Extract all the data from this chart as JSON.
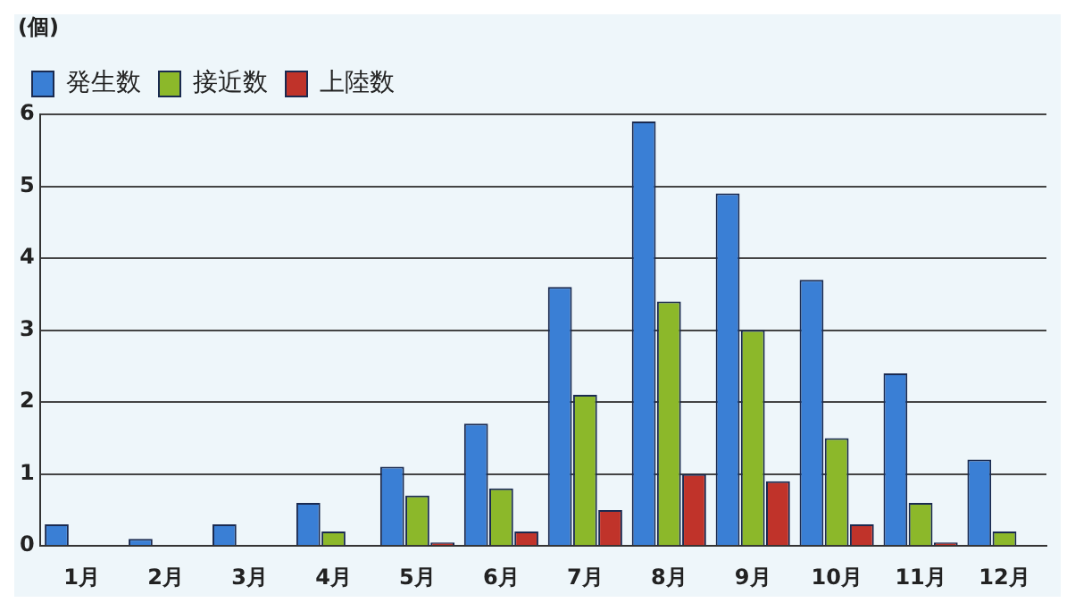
{
  "chart_data": {
    "type": "bar",
    "ylabel": "(個)",
    "categories": [
      "1月",
      "2月",
      "3月",
      "4月",
      "5月",
      "6月",
      "7月",
      "8月",
      "9月",
      "10月",
      "11月",
      "12月"
    ],
    "series": [
      {
        "name": "発生数",
        "color": "#3a7fd5",
        "values": [
          0.3,
          0.1,
          0.3,
          0.6,
          1.1,
          1.7,
          3.6,
          5.9,
          4.9,
          3.7,
          2.4,
          1.2
        ]
      },
      {
        "name": "接近数",
        "color": "#8cb82a",
        "values": [
          0,
          0,
          0,
          0.2,
          0.7,
          0.8,
          2.1,
          3.4,
          3.0,
          1.5,
          0.6,
          0.2
        ]
      },
      {
        "name": "上陸数",
        "color": "#c0332a",
        "values": [
          0,
          0,
          0,
          0,
          0.05,
          0.2,
          0.5,
          1.0,
          0.9,
          0.3,
          0.05,
          0
        ]
      }
    ],
    "ylim": [
      0,
      6
    ],
    "yticks": [
      0,
      1,
      2,
      3,
      4,
      5,
      6
    ],
    "grid": "y",
    "legend": "top left"
  }
}
